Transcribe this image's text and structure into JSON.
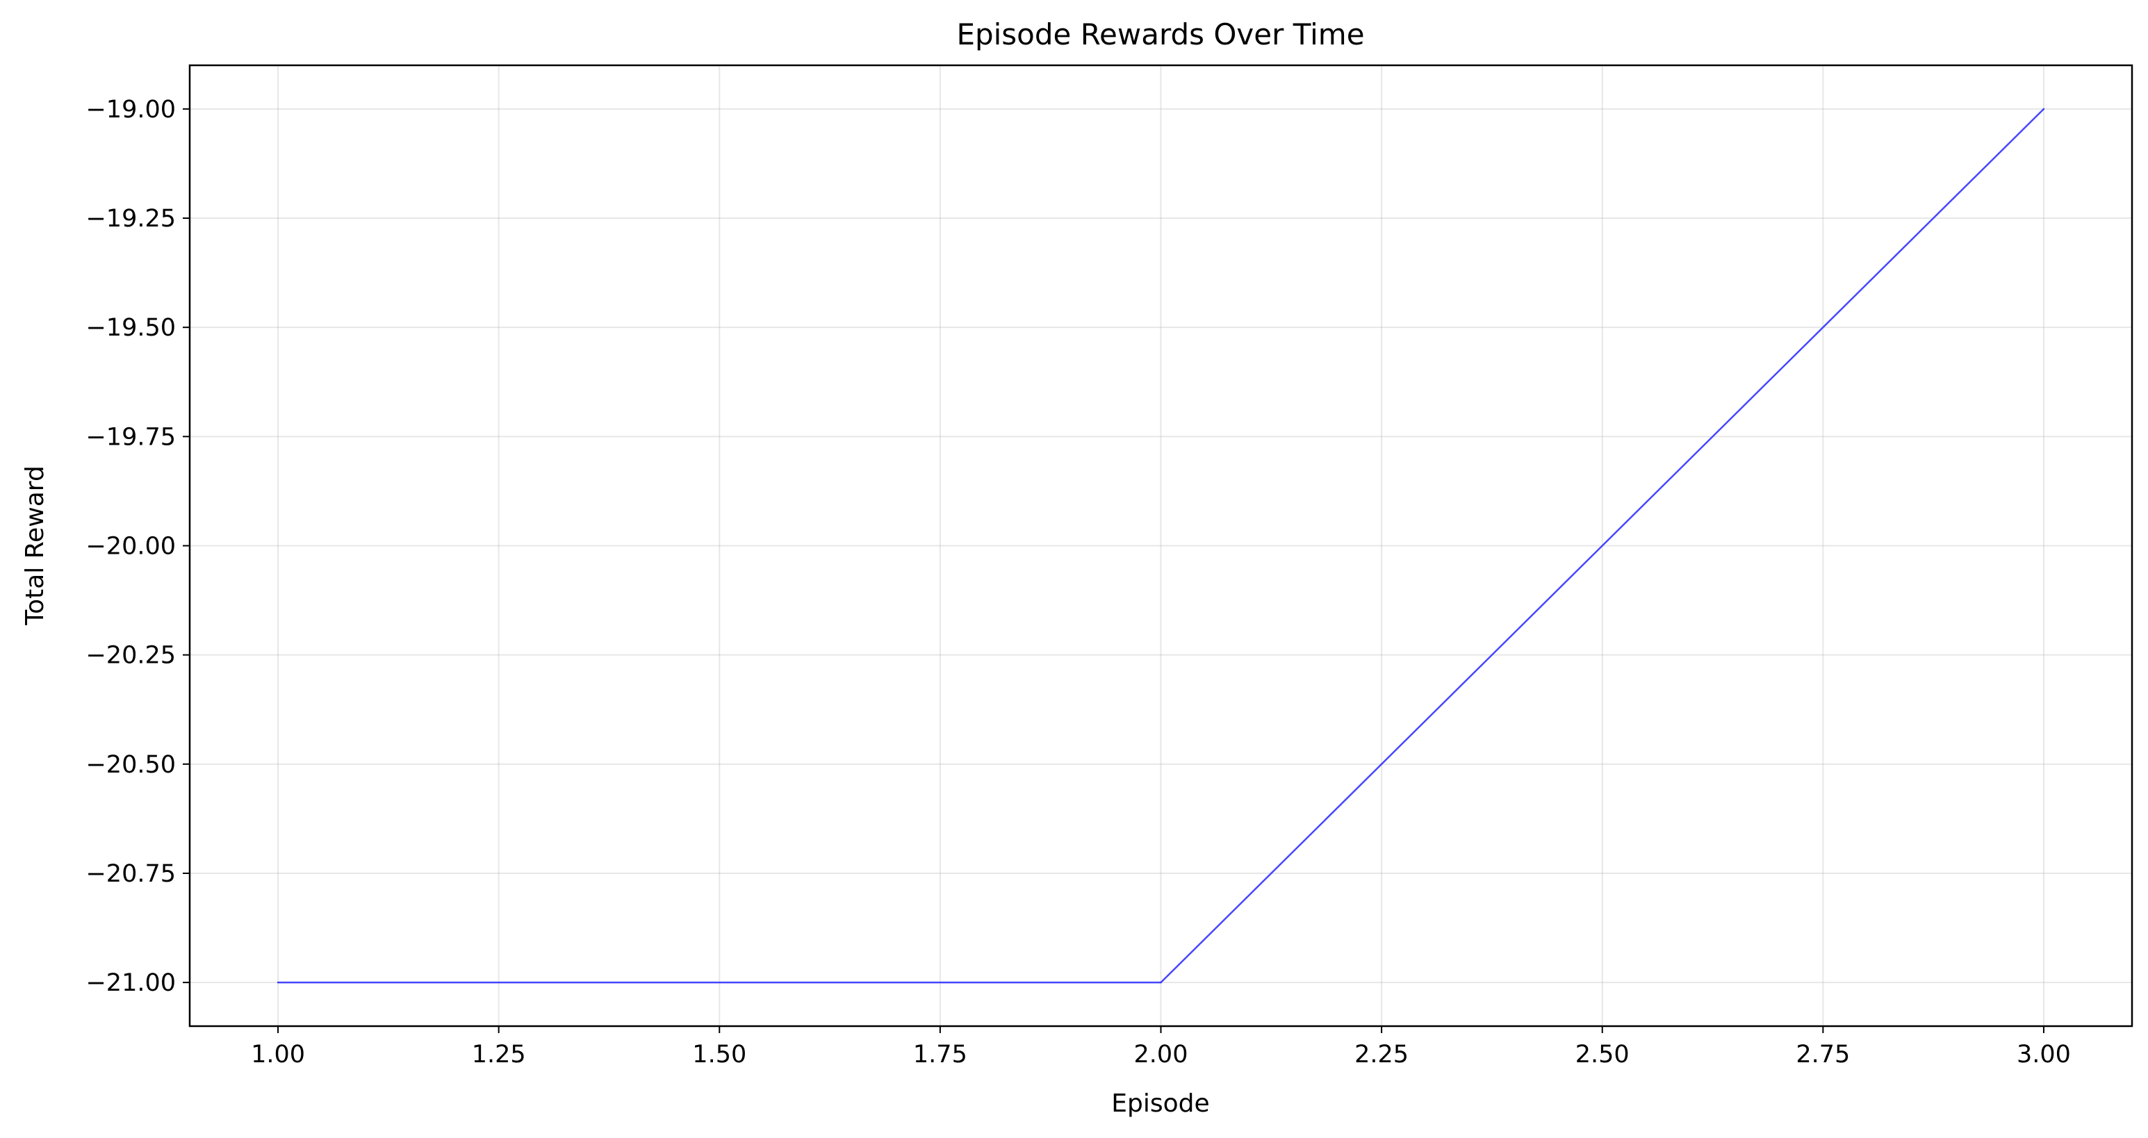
{
  "chart_data": {
    "type": "line",
    "title": "Episode Rewards Over Time",
    "xlabel": "Episode",
    "ylabel": "Total Reward",
    "xlim": [
      0.9,
      3.1
    ],
    "ylim": [
      -21.1,
      -18.9
    ],
    "grid": true,
    "x_ticks": [
      1.0,
      1.25,
      1.5,
      1.75,
      2.0,
      2.25,
      2.5,
      2.75,
      3.0
    ],
    "x_tick_labels": [
      "1.00",
      "1.25",
      "1.50",
      "1.75",
      "2.00",
      "2.25",
      "2.50",
      "2.75",
      "3.00"
    ],
    "y_ticks": [
      -19.0,
      -19.25,
      -19.5,
      -19.75,
      -20.0,
      -20.25,
      -20.5,
      -20.75,
      -21.0
    ],
    "y_tick_labels": [
      "−19.00",
      "−19.25",
      "−19.50",
      "−19.75",
      "−20.00",
      "−20.25",
      "−20.50",
      "−20.75",
      "−21.00"
    ],
    "series": [
      {
        "color": "#3333ff",
        "x": [
          1,
          2,
          3
        ],
        "y": [
          -21,
          -21,
          -19
        ]
      }
    ]
  }
}
